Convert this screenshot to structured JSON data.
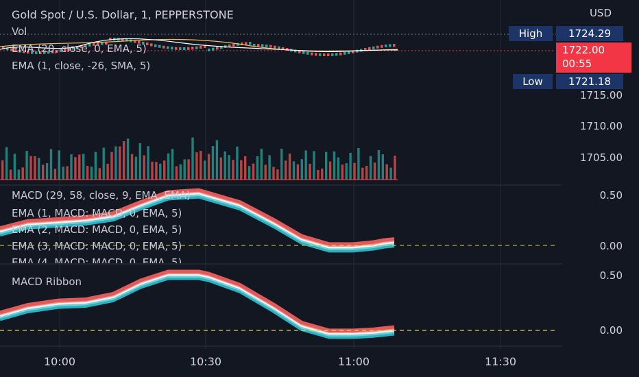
{
  "header": {
    "title": "Gold Spot / U.S. Dollar, 1, PEPPERSTONE",
    "currency": "USD"
  },
  "price_pane": {
    "indicators": [
      "Vol",
      "EMA (20, close, 0, EMA, 5)",
      "EMA (1, close, -26, SMA, 5)"
    ],
    "axis_labels": [
      "1715.00",
      "1710.00",
      "1705.00"
    ],
    "high": {
      "label": "High",
      "value": "1724.29"
    },
    "last": {
      "value": "1722.00",
      "countdown": "00:55"
    },
    "low": {
      "label": "Low",
      "value": "1721.18"
    }
  },
  "macd_pane": {
    "indicators": [
      "MACD (29, 58, close, 9, EMA, EMA)",
      "EMA (1, MACD: MACD, 0, EMA, 5)",
      "EMA (2, MACD: MACD, 0, EMA, 5)",
      "EMA (3, MACD: MACD, 0, EMA, 5)",
      "EMA (4, MACD: MACD, 0, EMA, 5)"
    ],
    "axis_labels": [
      "0.50",
      "0.00"
    ]
  },
  "ribbon_pane": {
    "indicators": [
      "MACD Ribbon"
    ],
    "axis_labels": [
      "0.50",
      "0.00"
    ]
  },
  "time_axis": [
    "10:00",
    "10:30",
    "11:00",
    "11:30"
  ],
  "colors": {
    "background": "#131722",
    "up": "#26a69a",
    "down": "#ef5350",
    "ribbon_teal": "#2ab0c0",
    "ribbon_red": "#e05a5a",
    "zero_line": "#e2d33a",
    "high_low_badge": "#1c3566",
    "last_badge": "#f23645"
  },
  "chart_data": [
    {
      "type": "line",
      "title": "MACD (29, 58, close, 9, EMA, EMA)",
      "xticks": [
        "10:00",
        "10:30",
        "11:00",
        "11:30"
      ],
      "ylim": [
        -0.05,
        0.55
      ],
      "x": [
        "09:50",
        "09:55",
        "10:00",
        "10:05",
        "10:10",
        "10:15",
        "10:20",
        "10:25",
        "10:30",
        "10:35",
        "10:40",
        "10:45",
        "10:50",
        "10:55",
        "11:00",
        "11:05",
        "11:08"
      ],
      "series": [
        {
          "values": [
            0.14,
            0.21,
            0.23,
            0.25,
            0.29,
            0.4,
            0.5,
            0.52,
            0.49,
            0.4,
            0.22,
            0.06,
            -0.02,
            -0.02,
            0.0,
            0.02,
            0.03
          ]
        }
      ]
    },
    {
      "type": "line",
      "title": "MACD Ribbon",
      "xticks": [
        "10:00",
        "10:30",
        "11:00",
        "11:30"
      ],
      "ylim": [
        -0.05,
        0.55
      ],
      "x": [
        "09:50",
        "09:55",
        "10:00",
        "10:05",
        "10:10",
        "10:15",
        "10:20",
        "10:25",
        "10:30",
        "10:35",
        "10:40",
        "10:45",
        "10:50",
        "10:55",
        "11:00",
        "11:05",
        "11:08"
      ],
      "series": [
        {
          "values": [
            0.13,
            0.2,
            0.24,
            0.25,
            0.3,
            0.42,
            0.5,
            0.5,
            0.48,
            0.38,
            0.2,
            0.04,
            -0.03,
            -0.03,
            -0.02,
            -0.01,
            0.0
          ]
        }
      ]
    }
  ]
}
